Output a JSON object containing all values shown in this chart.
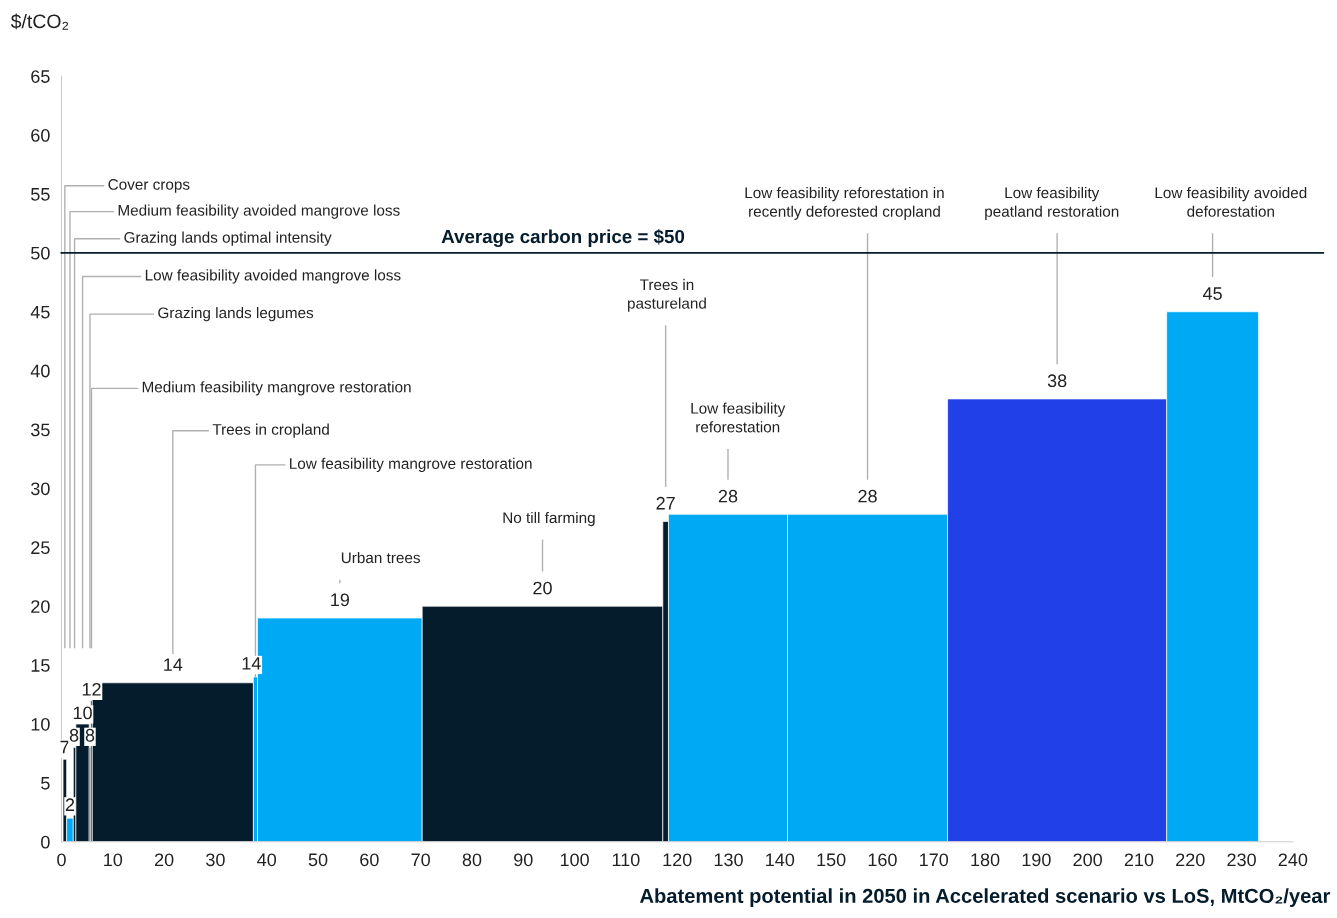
{
  "chart_data": {
    "type": "histogram",
    "bins": [
      0.3,
      1.0,
      2.3,
      2.8,
      5.4,
      5.7,
      6.0,
      37.4,
      38.2,
      70.3,
      117.2,
      118.3,
      141.5,
      172.7,
      215.4,
      233.3
    ],
    "values": [
      7,
      2,
      8,
      10,
      8,
      12,
      13.5,
      14,
      19,
      20,
      27.2,
      27.8,
      27.8,
      37.6,
      45
    ],
    "value_labels": [
      "7",
      "2",
      "8",
      "10",
      "8",
      "12",
      "14",
      "14",
      "19",
      "20",
      "27",
      "28",
      "28",
      "38",
      "45"
    ],
    "colors": [
      "#051c2c",
      "#00a9f4",
      "#051c2c",
      "#051c2c",
      "#051c2c",
      "#051c2c",
      "#051c2c",
      "#00a9f4",
      "#00a9f4",
      "#051c2c",
      "#051c2c",
      "#00a9f4",
      "#00a9f4",
      "#2140e8",
      "#00a9f4"
    ],
    "ylabel": "$/tCO₂",
    "xlabel": "Abatement potential in 2050 in Accelerated scenario vs LoS, MtCO₂/year",
    "xlim": [
      0,
      240
    ],
    "xticks": [
      0,
      10,
      20,
      30,
      40,
      50,
      60,
      70,
      80,
      90,
      100,
      110,
      120,
      130,
      140,
      150,
      160,
      170,
      180,
      190,
      200,
      210,
      220,
      230,
      240
    ],
    "ylim": [
      0,
      65
    ],
    "yticks": [
      0,
      5,
      10,
      15,
      20,
      25,
      30,
      35,
      40,
      45,
      50,
      55,
      60,
      65
    ],
    "grid": false,
    "ref_lines": [
      {
        "axis": "y",
        "value": 50,
        "label": "Average carbon price = $50",
        "color": "#051c2c"
      }
    ],
    "annotations": [
      "Cover crops",
      "Medium feasibility avoided mangrove loss",
      "Grazing lands optimal intensity",
      "Low feasibility avoided mangrove loss",
      "Grazing lands legumes",
      "Medium feasibility mangrove restoration",
      "Trees in cropland",
      {
        "text": "Low feasibility mangrove restoration",
        "x": 37.8,
        "y": 14
      },
      "Urban trees",
      "No till farming",
      "Trees in\npastureland",
      "Low feasibility\nreforestation",
      "Low feasibility reforestation in\nrecently deforested cropland",
      "Low feasibility\npeatland restoration",
      "Low feasibility avoided\ndeforestation"
    ]
  }
}
